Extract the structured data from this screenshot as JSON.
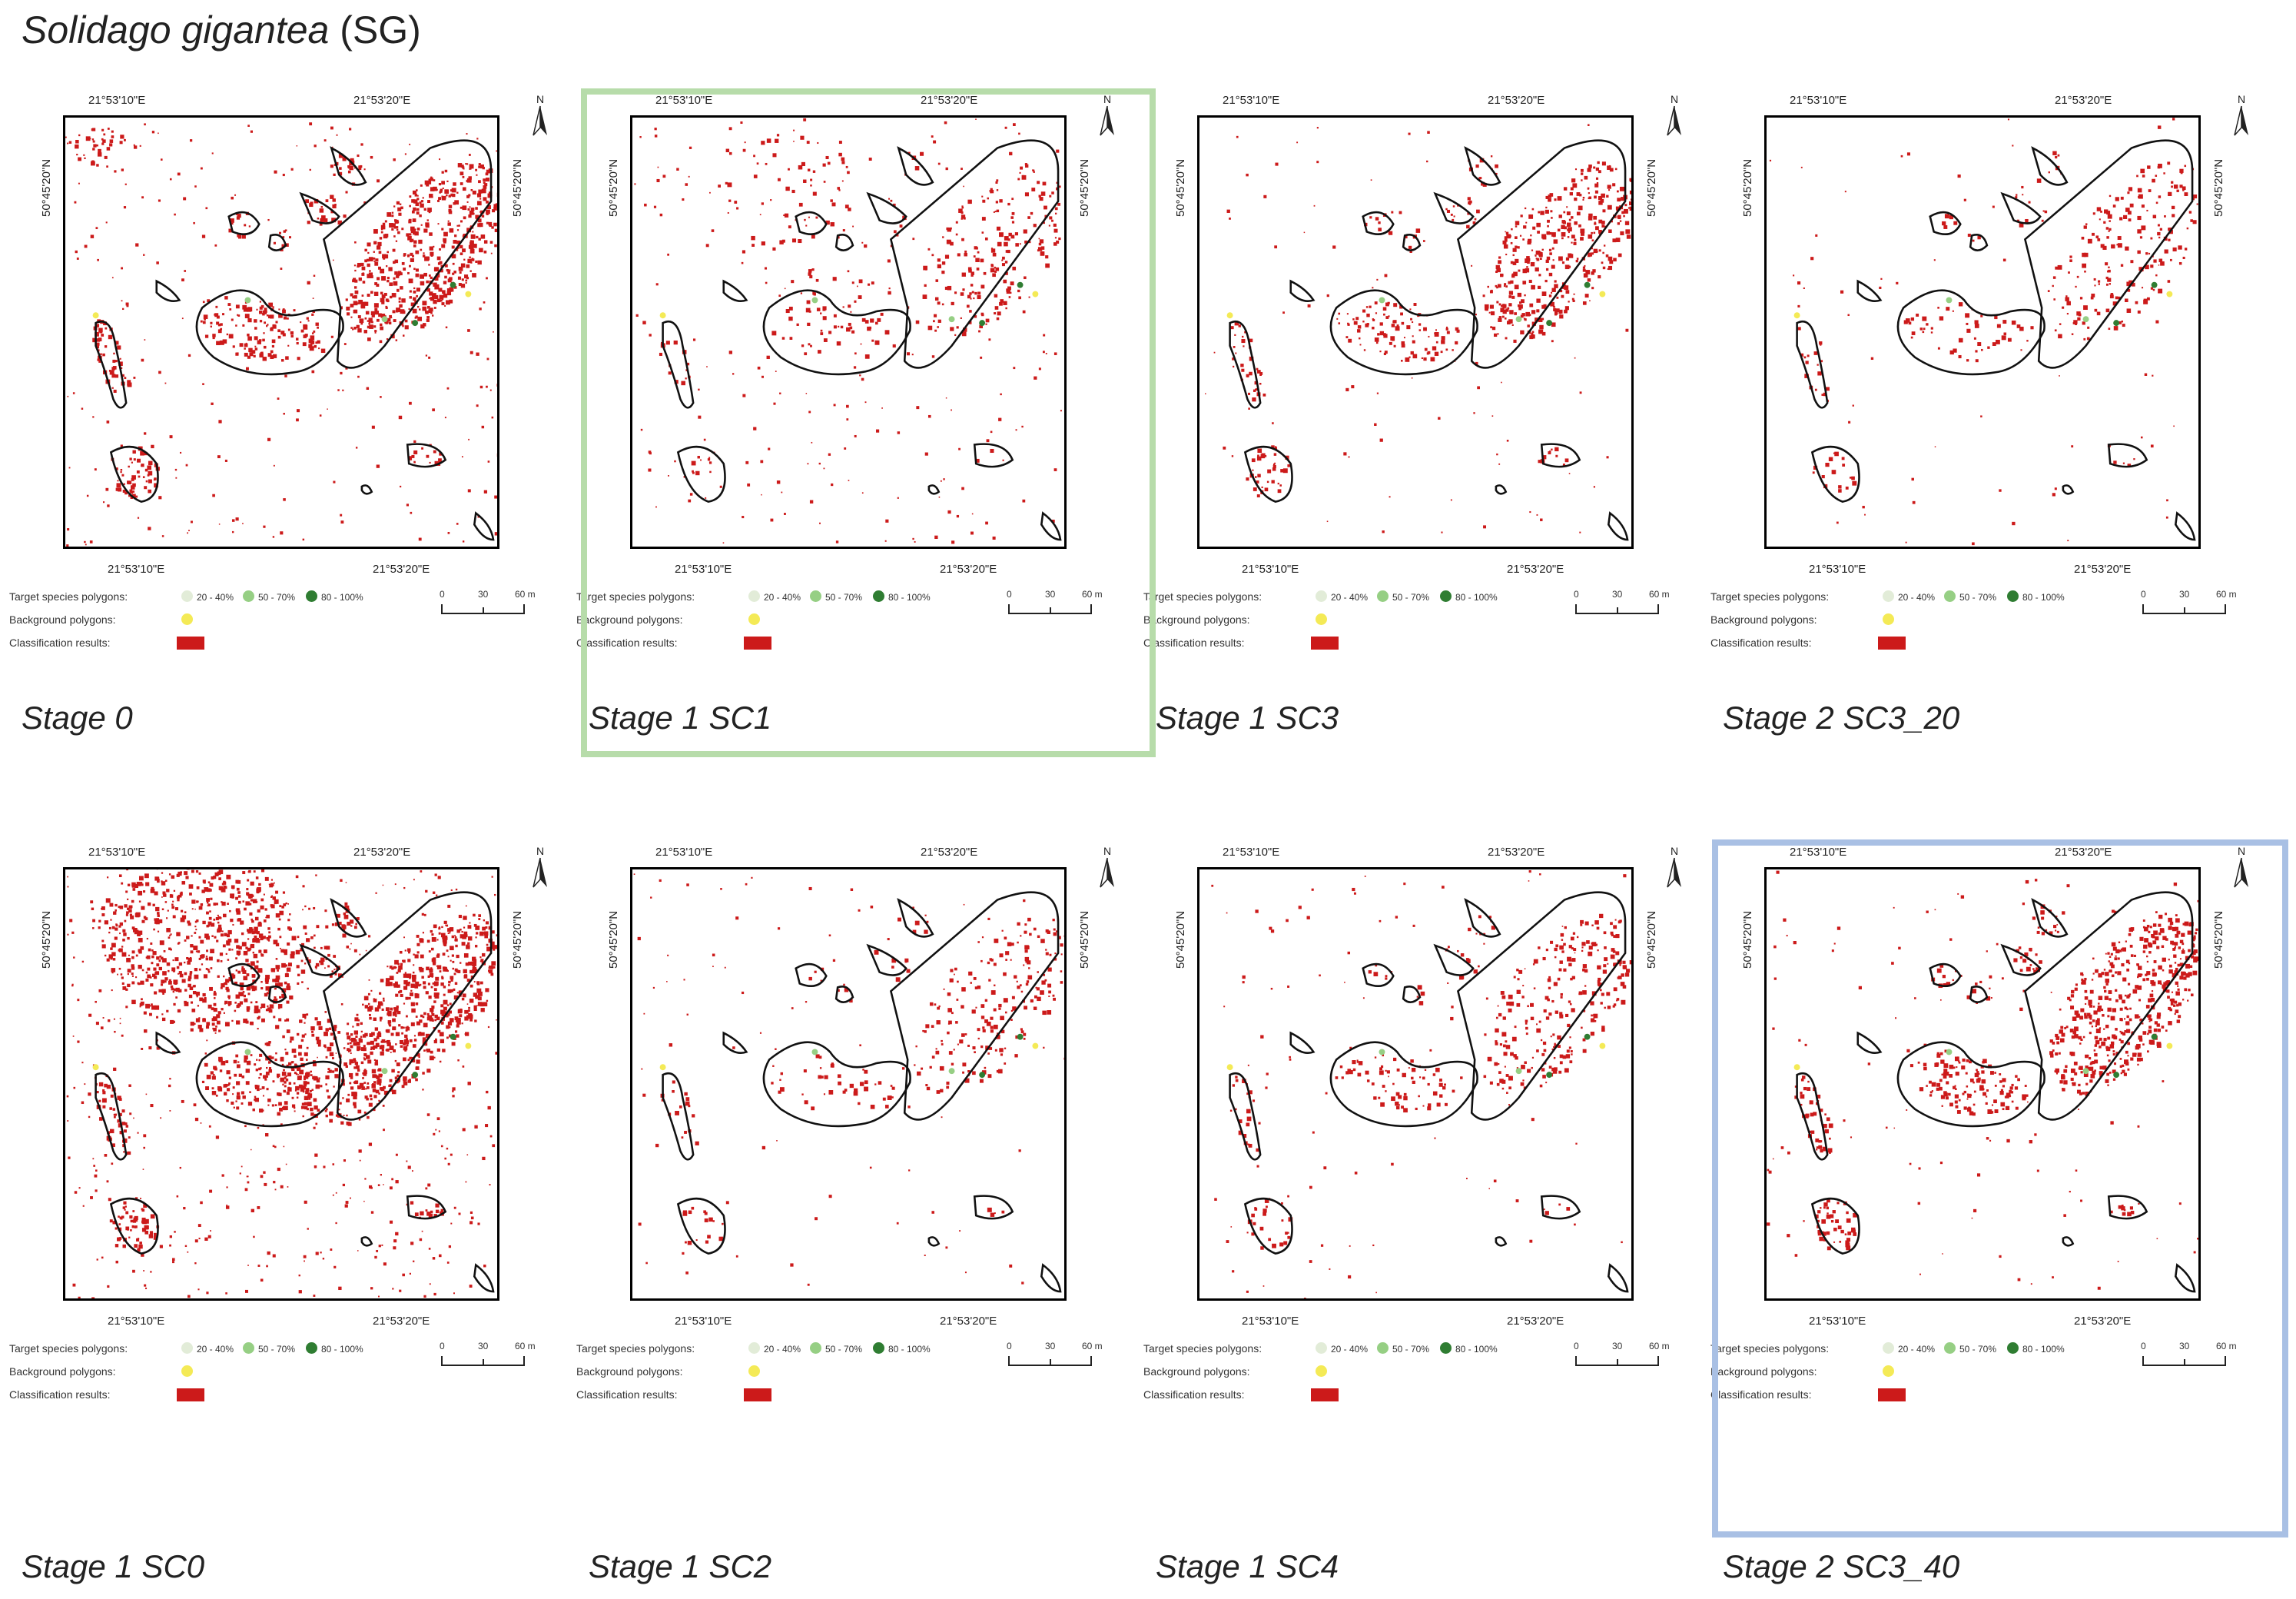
{
  "figure": {
    "species": "Solidago gigantea",
    "code": "(SG)"
  },
  "coords": {
    "lon_left": "21°53'10\"E",
    "lon_right": "21°53'20\"E",
    "lat": "50°45'20\"N",
    "north": "N"
  },
  "legend": {
    "target": "Target species polygons:",
    "background": "Background polygons:",
    "classification": "Classification results:",
    "cov1": "20 - 40%",
    "cov2": "50 - 70%",
    "cov3": "80 - 100%",
    "s0": "0",
    "s1": "30",
    "s2": "60 m"
  },
  "colors": {
    "classification": "#cc1a1a",
    "cov1": "#e2ecd8",
    "cov2": "#96cf84",
    "cov3": "#2f7d32",
    "background_poly": "#f4ea56",
    "highlight_green": "#b7dcaa",
    "highlight_blue": "#a9c0e4"
  },
  "panels": [
    {
      "stage": "Stage 0",
      "highlight": "none"
    },
    {
      "stage": "Stage 1 SC1",
      "highlight": "green"
    },
    {
      "stage": "Stage 1 SC3",
      "highlight": "none"
    },
    {
      "stage": "Stage 2 SC3_20",
      "highlight": "none"
    },
    {
      "stage": "Stage 1 SC0",
      "highlight": "none"
    },
    {
      "stage": "Stage 1 SC2",
      "highlight": "none"
    },
    {
      "stage": "Stage 1 SC4",
      "highlight": "none"
    },
    {
      "stage": "Stage 2 SC3_40",
      "highlight": "blue"
    }
  ]
}
